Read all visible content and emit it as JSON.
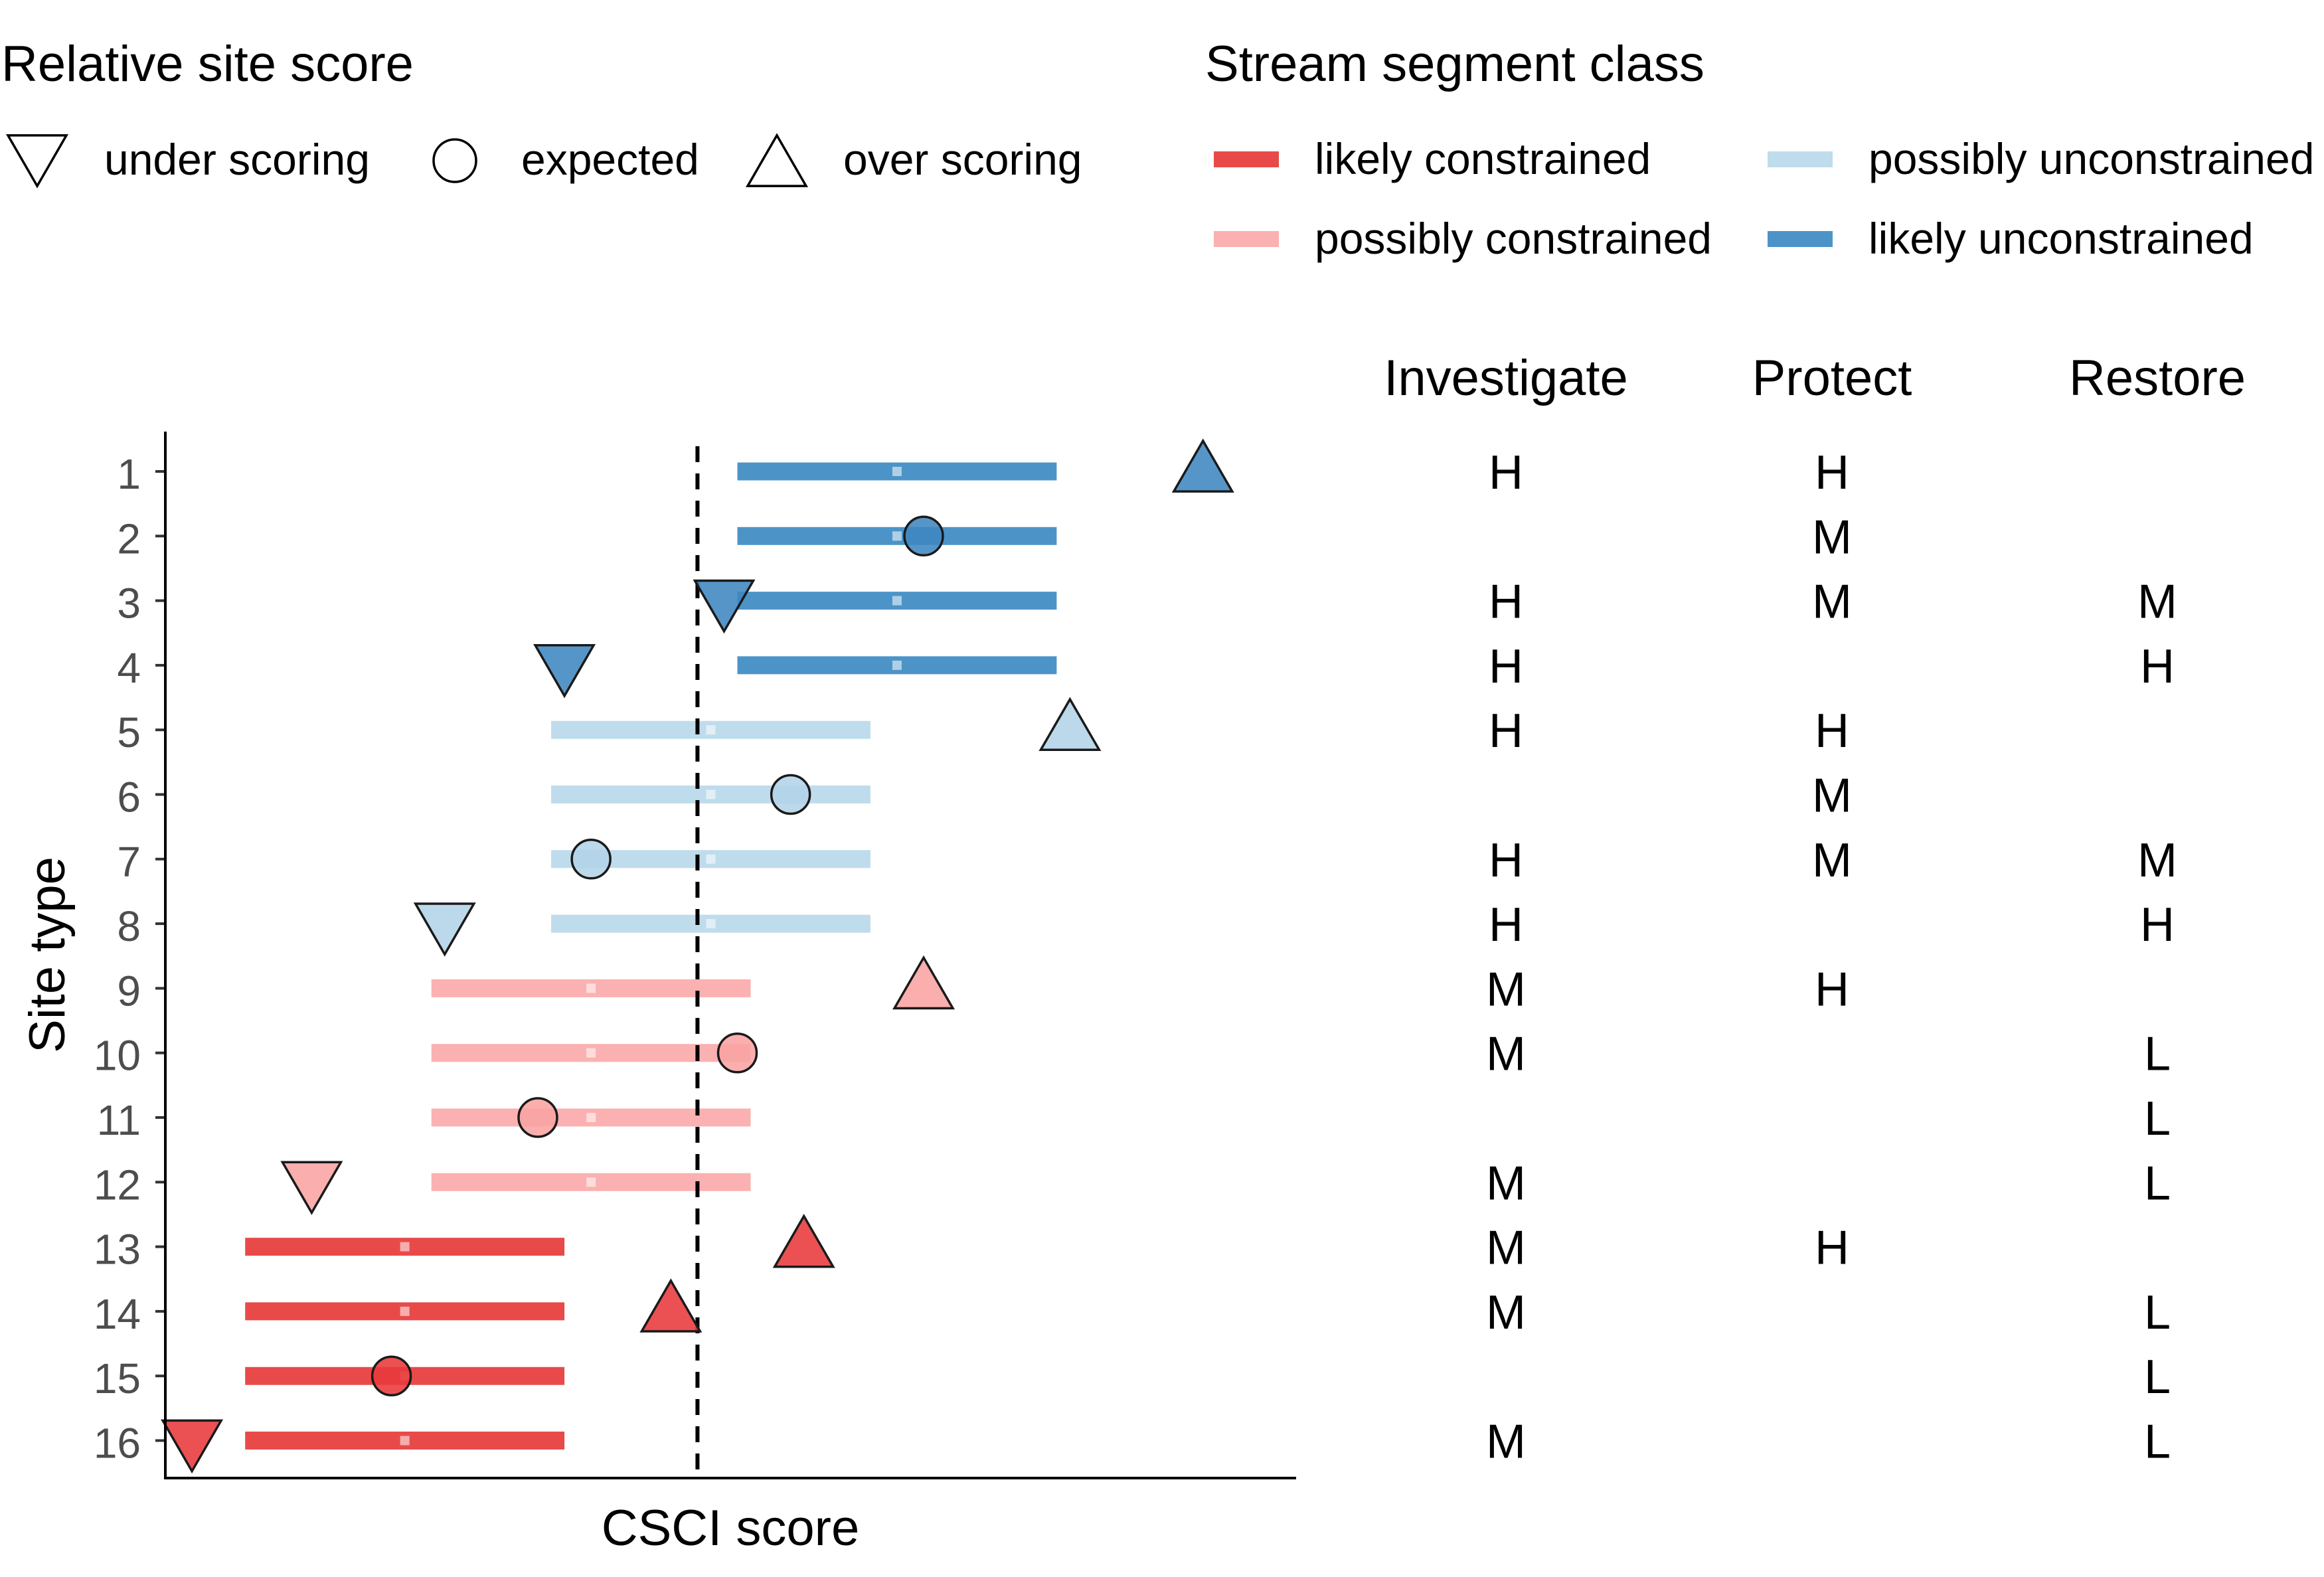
{
  "chart_data": {
    "type": "scatter",
    "xlabel": "CSCI score",
    "ylabel": "Site type",
    "y_categories": [
      "1",
      "2",
      "3",
      "4",
      "5",
      "6",
      "7",
      "8",
      "9",
      "10",
      "11",
      "12",
      "13",
      "14",
      "15",
      "16"
    ],
    "reference_line": {
      "x": 0.79,
      "style": "dashed"
    },
    "x_ticks_shown": false,
    "grid": false,
    "legends": {
      "relative_site_score": {
        "title": "Relative site score",
        "position": "top-left",
        "items": [
          {
            "key": "under",
            "label": "under scoring",
            "shape": "triangle-down"
          },
          {
            "key": "expected",
            "label": "expected",
            "shape": "circle"
          },
          {
            "key": "over",
            "label": "over scoring",
            "shape": "triangle-up"
          }
        ]
      },
      "stream_segment_class": {
        "title": "Stream segment class",
        "position": "top-right",
        "items": [
          {
            "key": "lc",
            "label": "likely constrained",
            "color": "#E41A1C"
          },
          {
            "key": "pc",
            "label": "possibly constrained",
            "color": "#FBA9A9"
          },
          {
            "key": "pu",
            "label": "possibly unconstrained",
            "color": "#B5D4E9"
          },
          {
            "key": "lu",
            "label": "likely unconstrained",
            "color": "#3F88C2"
          }
        ]
      }
    },
    "class_colors": {
      "lc": {
        "bar": "#E84A4A",
        "point": "#E8393B"
      },
      "pc": {
        "bar": "#FBB1B1",
        "point": "#F9A3A3"
      },
      "pu": {
        "bar": "#BFDCEC",
        "point": "#B3D3E8"
      },
      "lu": {
        "bar": "#4C94C8",
        "point": "#3F86C0"
      }
    },
    "sites": [
      {
        "site": "1",
        "class": "lu",
        "range": [
          0.82,
          1.06
        ],
        "median": 0.94,
        "score": 1.17,
        "relative": "over"
      },
      {
        "site": "2",
        "class": "lu",
        "range": [
          0.82,
          1.06
        ],
        "median": 0.94,
        "score": 0.96,
        "relative": "expected"
      },
      {
        "site": "3",
        "class": "lu",
        "range": [
          0.82,
          1.06
        ],
        "median": 0.94,
        "score": 0.81,
        "relative": "under"
      },
      {
        "site": "4",
        "class": "lu",
        "range": [
          0.82,
          1.06
        ],
        "median": 0.94,
        "score": 0.69,
        "relative": "under"
      },
      {
        "site": "5",
        "class": "pu",
        "range": [
          0.68,
          0.92
        ],
        "median": 0.8,
        "score": 1.07,
        "relative": "over"
      },
      {
        "site": "6",
        "class": "pu",
        "range": [
          0.68,
          0.92
        ],
        "median": 0.8,
        "score": 0.86,
        "relative": "expected"
      },
      {
        "site": "7",
        "class": "pu",
        "range": [
          0.68,
          0.92
        ],
        "median": 0.8,
        "score": 0.71,
        "relative": "expected"
      },
      {
        "site": "8",
        "class": "pu",
        "range": [
          0.68,
          0.92
        ],
        "median": 0.8,
        "score": 0.6,
        "relative": "under"
      },
      {
        "site": "9",
        "class": "pc",
        "range": [
          0.59,
          0.83
        ],
        "median": 0.71,
        "score": 0.96,
        "relative": "over"
      },
      {
        "site": "10",
        "class": "pc",
        "range": [
          0.59,
          0.83
        ],
        "median": 0.71,
        "score": 0.82,
        "relative": "expected"
      },
      {
        "site": "11",
        "class": "pc",
        "range": [
          0.59,
          0.83
        ],
        "median": 0.71,
        "score": 0.67,
        "relative": "expected"
      },
      {
        "site": "12",
        "class": "pc",
        "range": [
          0.59,
          0.83
        ],
        "median": 0.71,
        "score": 0.5,
        "relative": "under"
      },
      {
        "site": "13",
        "class": "lc",
        "range": [
          0.45,
          0.69
        ],
        "median": 0.57,
        "score": 0.87,
        "relative": "over"
      },
      {
        "site": "14",
        "class": "lc",
        "range": [
          0.45,
          0.69
        ],
        "median": 0.57,
        "score": 0.77,
        "relative": "over"
      },
      {
        "site": "15",
        "class": "lc",
        "range": [
          0.45,
          0.69
        ],
        "median": 0.57,
        "score": 0.56,
        "relative": "expected"
      },
      {
        "site": "16",
        "class": "lc",
        "range": [
          0.45,
          0.69
        ],
        "median": 0.57,
        "score": 0.41,
        "relative": "under"
      }
    ],
    "x_domain": [
      0.39,
      1.24
    ]
  },
  "priorities": {
    "columns": [
      "Investigate",
      "Protect",
      "Restore"
    ],
    "rows": [
      [
        "H",
        "H",
        ""
      ],
      [
        "",
        "M",
        ""
      ],
      [
        "H",
        "M",
        "M"
      ],
      [
        "H",
        "",
        "H"
      ],
      [
        "H",
        "H",
        ""
      ],
      [
        "",
        "M",
        ""
      ],
      [
        "H",
        "M",
        "M"
      ],
      [
        "H",
        "",
        "H"
      ],
      [
        "M",
        "H",
        ""
      ],
      [
        "M",
        "",
        "L"
      ],
      [
        "",
        "",
        "L"
      ],
      [
        "M",
        "",
        "L"
      ],
      [
        "M",
        "H",
        ""
      ],
      [
        "M",
        "",
        "L"
      ],
      [
        "",
        "",
        "L"
      ],
      [
        "M",
        "",
        "L"
      ]
    ]
  }
}
